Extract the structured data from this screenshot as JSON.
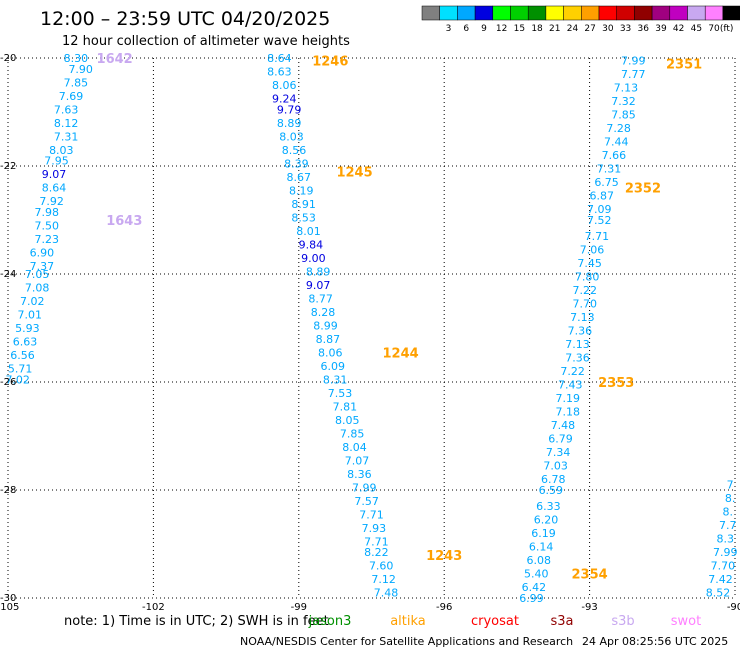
{
  "chart_data": {
    "type": "scatter",
    "title": "12:00 – 23:59 UTC 04/20/2025",
    "subtitle": "12 hour collection of altimeter wave heights",
    "x_ticks": [
      -105,
      -102,
      -99,
      -96,
      -93,
      -90
    ],
    "y_ticks": [
      -20,
      -22,
      -24,
      -26,
      -28,
      -30
    ],
    "x_tick_labels": [
      "-105",
      "-102",
      "-99",
      "-96",
      "-93",
      "-90"
    ],
    "y_tick_labels": [
      "-20",
      "-22",
      "-24",
      "-26",
      "-28",
      "-30"
    ],
    "xlim": [
      -105,
      -90
    ],
    "ylim": [
      -30,
      -20
    ],
    "grid": true,
    "legend": {
      "unit": "(ft)",
      "bins": [
        {
          "label": "",
          "color": "#808080"
        },
        {
          "label": "3",
          "color": "#00e0ff"
        },
        {
          "label": "6",
          "color": "#00a8ff"
        },
        {
          "label": "9",
          "color": "#0000e0"
        },
        {
          "label": "12",
          "color": "#00ff00"
        },
        {
          "label": "15",
          "color": "#00d000"
        },
        {
          "label": "18",
          "color": "#009000"
        },
        {
          "label": "21",
          "color": "#ffff00"
        },
        {
          "label": "24",
          "color": "#ffd000"
        },
        {
          "label": "27",
          "color": "#ffa000"
        },
        {
          "label": "30",
          "color": "#ff0000"
        },
        {
          "label": "33",
          "color": "#d00000"
        },
        {
          "label": "36",
          "color": "#900000"
        },
        {
          "label": "39",
          "color": "#a00080"
        },
        {
          "label": "42",
          "color": "#c000c0"
        },
        {
          "label": "45",
          "color": "#c8a8f0"
        },
        {
          "label": "70",
          "color": "#ff80ff"
        },
        {
          "label": "",
          "color": "#000000"
        }
      ]
    },
    "series": [
      {
        "points": [
          {
            "lon": -103.6,
            "lat": -20.0,
            "v": "8.30"
          },
          {
            "lon": -103.5,
            "lat": -20.2,
            "v": "7.90"
          },
          {
            "lon": -103.6,
            "lat": -20.45,
            "v": "7.85"
          },
          {
            "lon": -103.7,
            "lat": -20.7,
            "v": "7.69"
          },
          {
            "lon": -103.8,
            "lat": -20.95,
            "v": "7.63"
          },
          {
            "lon": -103.8,
            "lat": -21.2,
            "v": "8.12"
          },
          {
            "lon": -103.8,
            "lat": -21.45,
            "v": "7.31"
          },
          {
            "lon": -103.9,
            "lat": -21.7,
            "v": "8.03"
          },
          {
            "lon": -104.0,
            "lat": -21.9,
            "v": "7.95"
          },
          {
            "lon": -104.05,
            "lat": -22.15,
            "v": "9.07"
          },
          {
            "lon": -104.05,
            "lat": -22.4,
            "v": "8.64"
          },
          {
            "lon": -104.1,
            "lat": -22.65,
            "v": "7.92"
          },
          {
            "lon": -104.2,
            "lat": -22.85,
            "v": "7.98"
          },
          {
            "lon": -104.2,
            "lat": -23.1,
            "v": "7.50"
          },
          {
            "lon": -104.2,
            "lat": -23.35,
            "v": "7.23"
          },
          {
            "lon": -104.3,
            "lat": -23.6,
            "v": "6.90"
          },
          {
            "lon": -104.3,
            "lat": -23.85,
            "v": "7.37"
          },
          {
            "lon": -104.4,
            "lat": -24.0,
            "v": "7.05"
          },
          {
            "lon": -104.4,
            "lat": -24.25,
            "v": "7.08"
          },
          {
            "lon": -104.5,
            "lat": -24.5,
            "v": "7.02"
          },
          {
            "lon": -104.55,
            "lat": -24.75,
            "v": "7.01"
          },
          {
            "lon": -104.6,
            "lat": -25.0,
            "v": "5.93"
          },
          {
            "lon": -104.65,
            "lat": -25.25,
            "v": "6.63"
          },
          {
            "lon": -104.7,
            "lat": -25.5,
            "v": "6.56"
          },
          {
            "lon": -104.75,
            "lat": -25.75,
            "v": "5.71"
          },
          {
            "lon": -104.8,
            "lat": -25.95,
            "v": "7.02"
          }
        ]
      },
      {
        "points": [
          {
            "lon": -99.4,
            "lat": -20.0,
            "v": "8.64"
          },
          {
            "lon": -99.4,
            "lat": -20.25,
            "v": "8.63"
          },
          {
            "lon": -99.3,
            "lat": -20.5,
            "v": "8.06"
          },
          {
            "lon": -99.3,
            "lat": -20.75,
            "v": "9.24"
          },
          {
            "lon": -99.2,
            "lat": -20.95,
            "v": "9.79"
          },
          {
            "lon": -99.2,
            "lat": -21.2,
            "v": "8.89"
          },
          {
            "lon": -99.15,
            "lat": -21.45,
            "v": "8.03"
          },
          {
            "lon": -99.1,
            "lat": -21.7,
            "v": "8.56"
          },
          {
            "lon": -99.05,
            "lat": -21.95,
            "v": "8.39"
          },
          {
            "lon": -99.0,
            "lat": -22.2,
            "v": "8.67"
          },
          {
            "lon": -98.95,
            "lat": -22.45,
            "v": "8.19"
          },
          {
            "lon": -98.9,
            "lat": -22.7,
            "v": "8.91"
          },
          {
            "lon": -98.9,
            "lat": -22.95,
            "v": "8.53"
          },
          {
            "lon": -98.8,
            "lat": -23.2,
            "v": "8.01"
          },
          {
            "lon": -98.75,
            "lat": -23.45,
            "v": "9.84"
          },
          {
            "lon": -98.7,
            "lat": -23.7,
            "v": "9.00"
          },
          {
            "lon": -98.6,
            "lat": -23.95,
            "v": "8.89"
          },
          {
            "lon": -98.6,
            "lat": -24.2,
            "v": "9.07"
          },
          {
            "lon": -98.55,
            "lat": -24.45,
            "v": "8.77"
          },
          {
            "lon": -98.5,
            "lat": -24.7,
            "v": "8.28"
          },
          {
            "lon": -98.45,
            "lat": -24.95,
            "v": "8.99"
          },
          {
            "lon": -98.4,
            "lat": -25.2,
            "v": "8.87"
          },
          {
            "lon": -98.35,
            "lat": -25.45,
            "v": "8.06"
          },
          {
            "lon": -98.3,
            "lat": -25.7,
            "v": "6.09"
          },
          {
            "lon": -98.25,
            "lat": -25.95,
            "v": "8.31"
          },
          {
            "lon": -98.15,
            "lat": -26.2,
            "v": "7.53"
          },
          {
            "lon": -98.05,
            "lat": -26.45,
            "v": "7.81"
          },
          {
            "lon": -98.0,
            "lat": -26.7,
            "v": "8.05"
          },
          {
            "lon": -97.9,
            "lat": -26.95,
            "v": "7.85"
          },
          {
            "lon": -97.85,
            "lat": -27.2,
            "v": "8.04"
          },
          {
            "lon": -97.8,
            "lat": -27.45,
            "v": "7.07"
          },
          {
            "lon": -97.75,
            "lat": -27.7,
            "v": "8.36"
          },
          {
            "lon": -97.65,
            "lat": -27.95,
            "v": "7.99"
          },
          {
            "lon": -97.6,
            "lat": -28.2,
            "v": "7.57"
          },
          {
            "lon": -97.5,
            "lat": -28.45,
            "v": "7.71"
          },
          {
            "lon": -97.45,
            "lat": -28.7,
            "v": "7.93"
          },
          {
            "lon": -97.4,
            "lat": -28.95,
            "v": "7.71"
          },
          {
            "lon": -97.4,
            "lat": -29.15,
            "v": "8.22"
          },
          {
            "lon": -97.3,
            "lat": -29.4,
            "v": "7.60"
          },
          {
            "lon": -97.25,
            "lat": -29.65,
            "v": "7.12"
          },
          {
            "lon": -97.2,
            "lat": -29.9,
            "v": "7.48"
          }
        ]
      },
      {
        "points": [
          {
            "lon": -92.1,
            "lat": -20.05,
            "v": "7.99"
          },
          {
            "lon": -92.1,
            "lat": -20.3,
            "v": "7.77"
          },
          {
            "lon": -92.25,
            "lat": -20.55,
            "v": "7.13"
          },
          {
            "lon": -92.3,
            "lat": -20.8,
            "v": "7.32"
          },
          {
            "lon": -92.3,
            "lat": -21.05,
            "v": "7.85"
          },
          {
            "lon": -92.4,
            "lat": -21.3,
            "v": "7.28"
          },
          {
            "lon": -92.45,
            "lat": -21.55,
            "v": "7.44"
          },
          {
            "lon": -92.5,
            "lat": -21.8,
            "v": "7.66"
          },
          {
            "lon": -92.6,
            "lat": -22.05,
            "v": "7.31"
          },
          {
            "lon": -92.65,
            "lat": -22.3,
            "v": "6.75"
          },
          {
            "lon": -92.75,
            "lat": -22.55,
            "v": "6.87"
          },
          {
            "lon": -92.8,
            "lat": -22.8,
            "v": "7.09"
          },
          {
            "lon": -92.8,
            "lat": -23.0,
            "v": "7.52"
          },
          {
            "lon": -92.85,
            "lat": -23.3,
            "v": "7.71"
          },
          {
            "lon": -92.95,
            "lat": -23.55,
            "v": "7.06"
          },
          {
            "lon": -93.0,
            "lat": -23.8,
            "v": "7.45"
          },
          {
            "lon": -93.05,
            "lat": -24.05,
            "v": "7.80"
          },
          {
            "lon": -93.1,
            "lat": -24.3,
            "v": "7.22"
          },
          {
            "lon": -93.1,
            "lat": -24.55,
            "v": "7.70"
          },
          {
            "lon": -93.15,
            "lat": -24.8,
            "v": "7.13"
          },
          {
            "lon": -93.2,
            "lat": -25.05,
            "v": "7.36"
          },
          {
            "lon": -93.25,
            "lat": -25.3,
            "v": "7.13"
          },
          {
            "lon": -93.25,
            "lat": -25.55,
            "v": "7.36"
          },
          {
            "lon": -93.35,
            "lat": -25.8,
            "v": "7.22"
          },
          {
            "lon": -93.4,
            "lat": -26.05,
            "v": "7.43"
          },
          {
            "lon": -93.45,
            "lat": -26.3,
            "v": "7.19"
          },
          {
            "lon": -93.45,
            "lat": -26.55,
            "v": "7.18"
          },
          {
            "lon": -93.55,
            "lat": -26.8,
            "v": "7.48"
          },
          {
            "lon": -93.6,
            "lat": -27.05,
            "v": "6.79"
          },
          {
            "lon": -93.65,
            "lat": -27.3,
            "v": "7.34"
          },
          {
            "lon": -93.7,
            "lat": -27.55,
            "v": "7.03"
          },
          {
            "lon": -93.75,
            "lat": -27.8,
            "v": "6.78"
          },
          {
            "lon": -93.8,
            "lat": -28.0,
            "v": "6.59"
          },
          {
            "lon": -93.85,
            "lat": -28.3,
            "v": "6.33"
          },
          {
            "lon": -93.9,
            "lat": -28.55,
            "v": "6.20"
          },
          {
            "lon": -93.95,
            "lat": -28.8,
            "v": "6.19"
          },
          {
            "lon": -94.0,
            "lat": -29.05,
            "v": "6.14"
          },
          {
            "lon": -94.05,
            "lat": -29.3,
            "v": "6.08"
          },
          {
            "lon": -94.1,
            "lat": -29.55,
            "v": "5.40"
          },
          {
            "lon": -94.15,
            "lat": -29.8,
            "v": "6.42"
          },
          {
            "lon": -94.2,
            "lat": -30.0,
            "v": "6.99"
          }
        ]
      },
      {
        "points": [
          {
            "lon": -90.1,
            "lat": -27.9,
            "v": "7"
          },
          {
            "lon": -90.1,
            "lat": -28.15,
            "v": "8."
          },
          {
            "lon": -90.15,
            "lat": -28.4,
            "v": "8."
          },
          {
            "lon": -90.15,
            "lat": -28.65,
            "v": "7.7"
          },
          {
            "lon": -90.2,
            "lat": -28.9,
            "v": "8.3"
          },
          {
            "lon": -90.2,
            "lat": -29.15,
            "v": "7.99"
          },
          {
            "lon": -90.25,
            "lat": -29.4,
            "v": "7.70"
          },
          {
            "lon": -90.3,
            "lat": -29.65,
            "v": "7.42"
          },
          {
            "lon": -90.35,
            "lat": -29.9,
            "v": "8.52"
          }
        ]
      }
    ],
    "annotations": [
      {
        "lon": -102.8,
        "lat": -20.0,
        "text": "1642",
        "color": "#c8a8f0"
      },
      {
        "lon": -102.6,
        "lat": -23.0,
        "text": "1643",
        "color": "#c8a8f0"
      },
      {
        "lon": -98.35,
        "lat": -20.05,
        "text": "1246",
        "color": "#ffa000"
      },
      {
        "lon": -97.85,
        "lat": -22.1,
        "text": "1245",
        "color": "#ffa000"
      },
      {
        "lon": -96.9,
        "lat": -25.45,
        "text": "1244",
        "color": "#ffa000"
      },
      {
        "lon": -96.0,
        "lat": -29.2,
        "text": "1243",
        "color": "#ffa000"
      },
      {
        "lon": -91.05,
        "lat": -20.1,
        "text": "2351",
        "color": "#ffa000"
      },
      {
        "lon": -91.9,
        "lat": -22.4,
        "text": "2352",
        "color": "#ffa000"
      },
      {
        "lon": -92.45,
        "lat": -26.0,
        "text": "2353",
        "color": "#ffa000"
      },
      {
        "lon": -93.0,
        "lat": -29.55,
        "text": "2354",
        "color": "#ffa000"
      }
    ]
  },
  "footer": {
    "note": "note:  1) Time is in UTC;  2) SWH is in feet",
    "satellites": [
      {
        "name": "jason3",
        "color": "#009000"
      },
      {
        "name": "altika",
        "color": "#ffa000"
      },
      {
        "name": "cryosat",
        "color": "#ff0000"
      },
      {
        "name": "s3a",
        "color": "#900000"
      },
      {
        "name": "s3b",
        "color": "#c8a8f0"
      },
      {
        "name": "swot",
        "color": "#ff80ff"
      }
    ],
    "credit": "NOAA/NESDIS Center for Satellite Applications and Research",
    "timestamp": "24 Apr 08:25:56 UTC 2025"
  },
  "colors": {
    "low": "#00a8ff",
    "high": "#0000e0"
  }
}
